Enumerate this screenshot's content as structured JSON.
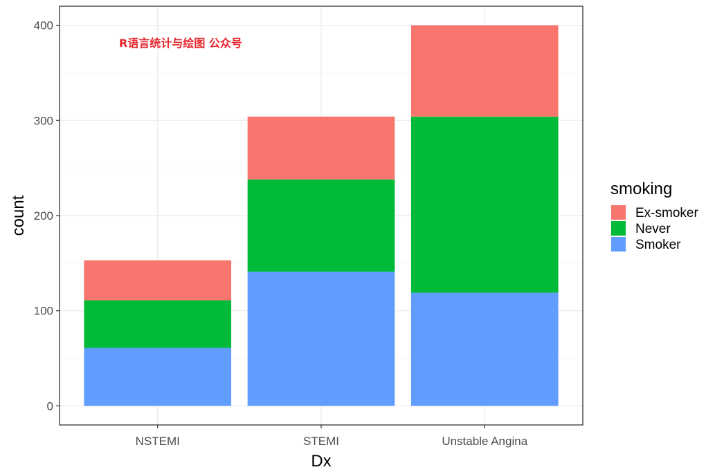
{
  "chart_data": {
    "type": "bar",
    "stacked": true,
    "categories": [
      "NSTEMI",
      "STEMI",
      "Unstable Angina"
    ],
    "series": [
      {
        "name": "Smoker",
        "color": "#619CFF",
        "values": [
          61,
          141,
          119
        ]
      },
      {
        "name": "Never",
        "color": "#00BA38",
        "values": [
          50,
          97,
          185
        ]
      },
      {
        "name": "Ex-smoker",
        "color": "#F8766D",
        "values": [
          42,
          66,
          96
        ]
      }
    ],
    "xlabel": "Dx",
    "ylabel": "count",
    "ylim": [
      -20,
      420
    ],
    "yticks": [
      0,
      100,
      200,
      300,
      400
    ],
    "grid": true,
    "legend": {
      "title": "smoking",
      "position": "right",
      "entries": [
        "Ex-smoker",
        "Never",
        "Smoker"
      ]
    },
    "annotation": {
      "text": "R语言统计与绘图 公众号",
      "color": "#E8262E"
    }
  },
  "colors": {
    "panel_border": "#333333",
    "grid_major": "#ebebeb",
    "grid_minor": "#f5f5f5"
  }
}
